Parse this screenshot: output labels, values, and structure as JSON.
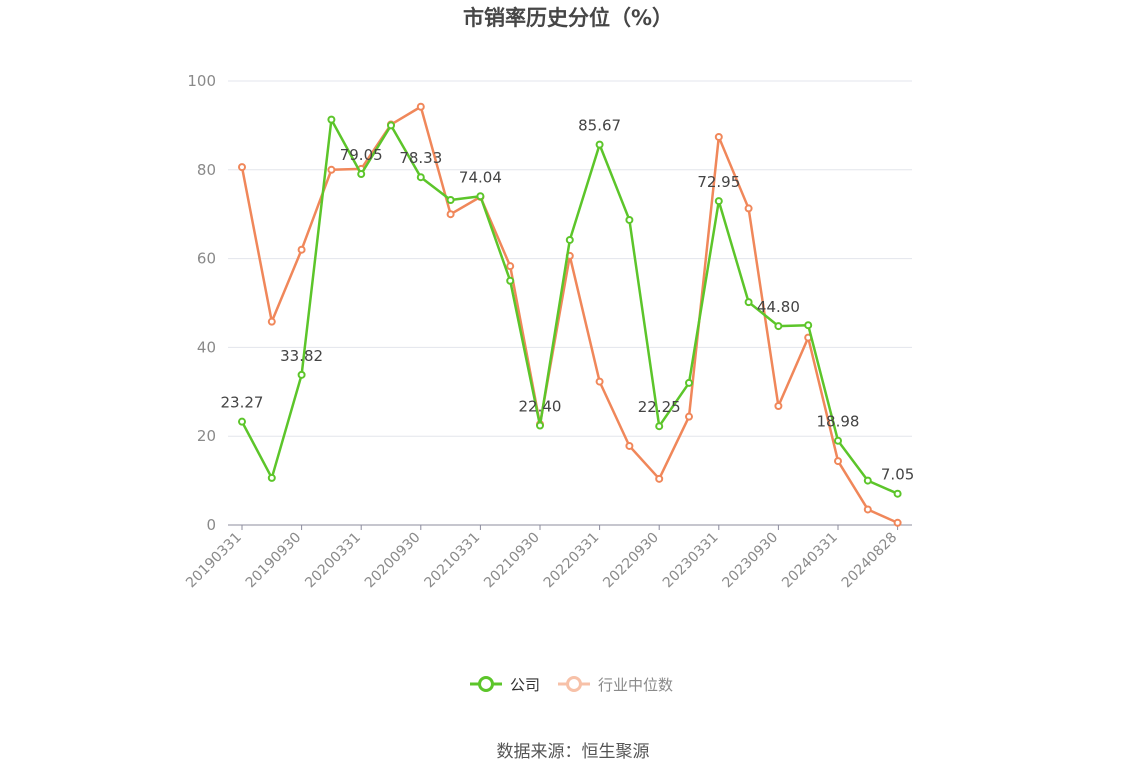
{
  "chart_data": {
    "type": "line",
    "title": "市销率历史分位（%）",
    "source": "数据来源：恒生聚源",
    "ylim": [
      0,
      100
    ],
    "yticks": [
      "0",
      "20",
      "40",
      "60",
      "80",
      "100"
    ],
    "xticks": [
      "20190331",
      "20190930",
      "20200331",
      "20200930",
      "20210331",
      "20210930",
      "20220331",
      "20220930",
      "20230331",
      "20230930",
      "20240331",
      "20240828"
    ],
    "grid": true,
    "legend_position": "bottom-center",
    "series": [
      {
        "name": "公司",
        "color": "#5cc52a",
        "values": [
          23.27,
          10.6,
          33.82,
          91.3,
          79.05,
          90.0,
          78.33,
          73.2,
          74.04,
          55.0,
          22.4,
          64.2,
          85.67,
          68.7,
          22.25,
          32.0,
          72.95,
          50.2,
          44.8,
          45.0,
          18.98,
          10.0,
          7.05
        ],
        "labels": [
          "23.27",
          "",
          "33.82",
          "",
          "79.05",
          "",
          "78.33",
          "",
          "74.04",
          "",
          "22.40",
          "",
          "85.67",
          "",
          "22.25",
          "",
          "72.95",
          "",
          "44.80",
          "",
          "18.98",
          "",
          "7.05"
        ]
      },
      {
        "name": "行业中位数",
        "color": "#f0875a",
        "values": [
          80.6,
          45.8,
          62.0,
          80.0,
          80.2,
          90.2,
          94.2,
          70.0,
          73.9,
          58.3,
          22.7,
          60.6,
          32.3,
          17.8,
          10.4,
          24.4,
          87.4,
          71.3,
          26.8,
          42.2,
          14.4,
          3.5,
          0.5
        ]
      }
    ]
  }
}
